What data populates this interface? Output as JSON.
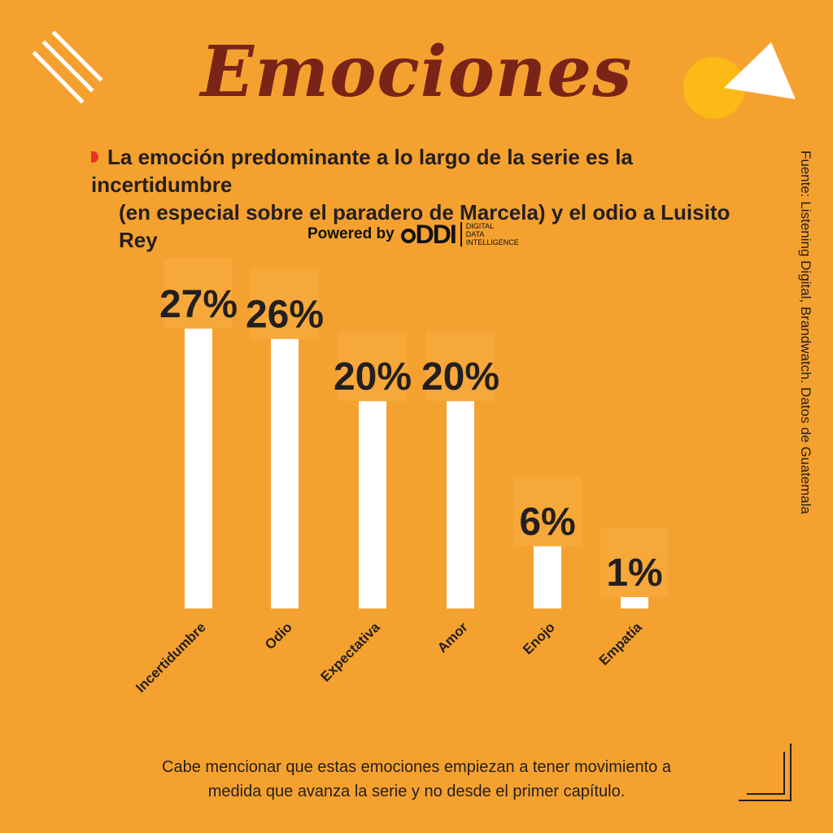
{
  "header": {
    "title": "Emociones",
    "subtitle_line1": "La emoción predominante a lo largo de la serie es la incertidumbre",
    "subtitle_line2": "(en especial sobre el paradero de Marcela) y el odio a Luisito Rey",
    "powered_by": "Powered by",
    "logo_mark": "DDI",
    "logo_line1": "DIGITAL",
    "logo_line2": "DATA",
    "logo_line3": "INTELLIGENCE"
  },
  "source": "Fuente: Listening Digital, Brandwatch. Datos de Guatemala",
  "footnote_line1": "Cabe mencionar que estas emociones empiezan a tener movimiento a",
  "footnote_line2": "medida que avanza la serie y no desde el primer capítulo.",
  "colors": {
    "background": "#F5A130",
    "bar": "#FFFFFF",
    "title": "#7A2418",
    "text": "#231F20",
    "accent_red": "#E63323",
    "accent_yellow": "#FBBA16"
  },
  "chart_data": {
    "type": "bar",
    "categories": [
      "Incertidumbre",
      "Odio",
      "Expectativa",
      "Amor",
      "Enojo",
      "Empatía"
    ],
    "values": [
      27,
      26,
      20,
      20,
      6,
      1
    ],
    "value_labels": [
      "27%",
      "26%",
      "20%",
      "20%",
      "6%",
      "1%"
    ],
    "ylim": [
      0,
      27
    ],
    "grid": false,
    "legend": "none"
  }
}
